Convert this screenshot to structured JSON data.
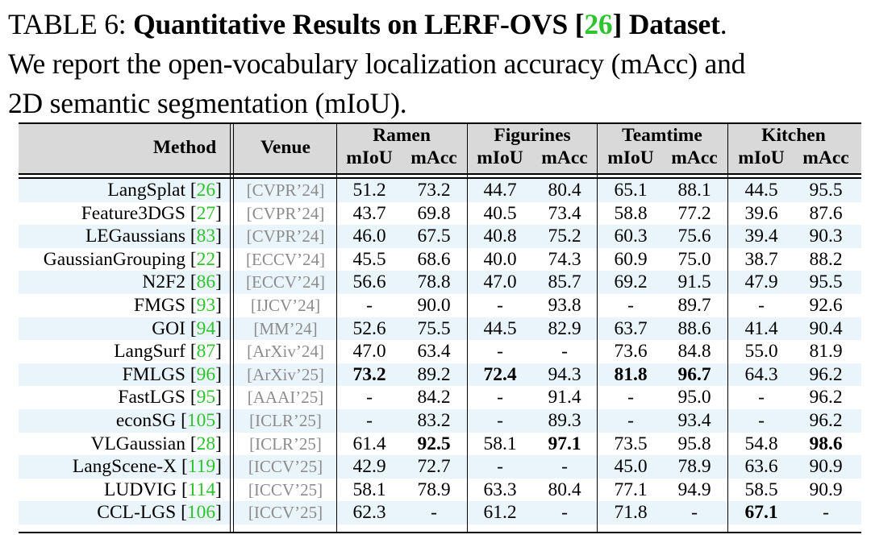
{
  "caption": {
    "label": "TABLE 6: ",
    "title_pre": "Quantitative Results on LERF-OVS [",
    "title_cite": "26",
    "title_post": "] Dataset",
    "period": ".",
    "line2": "We report the open-vocabulary localization accuracy (mAcc) and",
    "line3": "2D semantic segmentation (mIoU)."
  },
  "table": {
    "headers": {
      "method": "Method",
      "venue": "Venue",
      "groups": [
        "Ramen",
        "Figurines",
        "Teamtime",
        "Kitchen"
      ],
      "sub": [
        "mIoU",
        "mAcc"
      ]
    },
    "rows": [
      {
        "name": "LangSplat",
        "cite": "26",
        "venue": "[CVPR’24]",
        "v": [
          "51.2",
          "73.2",
          "44.7",
          "80.4",
          "65.1",
          "88.1",
          "44.5",
          "95.5"
        ],
        "bold": []
      },
      {
        "name": "Feature3DGS",
        "cite": "27",
        "venue": "[CVPR’24]",
        "v": [
          "43.7",
          "69.8",
          "40.5",
          "73.4",
          "58.8",
          "77.2",
          "39.6",
          "87.6"
        ],
        "bold": []
      },
      {
        "name": "LEGaussians",
        "cite": "83",
        "venue": "[CVPR’24]",
        "v": [
          "46.0",
          "67.5",
          "40.8",
          "75.2",
          "60.3",
          "75.6",
          "39.4",
          "90.3"
        ],
        "bold": []
      },
      {
        "name": "GaussianGrouping",
        "cite": "22",
        "venue": "[ECCV’24]",
        "v": [
          "45.5",
          "68.6",
          "40.0",
          "74.3",
          "60.9",
          "75.0",
          "38.7",
          "88.2"
        ],
        "bold": []
      },
      {
        "name": "N2F2",
        "cite": "86",
        "venue": "[ECCV’24]",
        "v": [
          "56.6",
          "78.8",
          "47.0",
          "85.7",
          "69.2",
          "91.5",
          "47.9",
          "95.5"
        ],
        "bold": []
      },
      {
        "name": "FMGS",
        "cite": "93",
        "venue": "[IJCV’24]",
        "v": [
          "-",
          "90.0",
          "-",
          "93.8",
          "-",
          "89.7",
          "-",
          "92.6"
        ],
        "bold": []
      },
      {
        "name": "GOI",
        "cite": "94",
        "venue": "[MM’24]",
        "v": [
          "52.6",
          "75.5",
          "44.5",
          "82.9",
          "63.7",
          "88.6",
          "41.4",
          "90.4"
        ],
        "bold": []
      },
      {
        "name": "LangSurf",
        "cite": "87",
        "venue": "[ArXiv’24]",
        "v": [
          "47.0",
          "63.4",
          "-",
          "-",
          "73.6",
          "84.8",
          "55.0",
          "81.9"
        ],
        "bold": []
      },
      {
        "name": "FMLGS",
        "cite": "96",
        "venue": "[ArXiv’25]",
        "v": [
          "73.2",
          "89.2",
          "72.4",
          "94.3",
          "81.8",
          "96.7",
          "64.3",
          "96.2"
        ],
        "bold": [
          0,
          2,
          4,
          5
        ]
      },
      {
        "name": "FastLGS",
        "cite": "95",
        "venue": "[AAAI’25]",
        "v": [
          "-",
          "84.2",
          "-",
          "91.4",
          "-",
          "95.0",
          "-",
          "96.2"
        ],
        "bold": []
      },
      {
        "name": "econSG",
        "cite": "105",
        "venue": "[ICLR’25]",
        "v": [
          "-",
          "83.2",
          "-",
          "89.3",
          "-",
          "93.4",
          "-",
          "96.2"
        ],
        "bold": []
      },
      {
        "name": "VLGaussian",
        "cite": "28",
        "venue": "[ICLR’25]",
        "v": [
          "61.4",
          "92.5",
          "58.1",
          "97.1",
          "73.5",
          "95.8",
          "54.8",
          "98.6"
        ],
        "bold": [
          1,
          3,
          7
        ]
      },
      {
        "name": "LangScene-X",
        "cite": "119",
        "venue": "[ICCV’25]",
        "v": [
          "42.9",
          "72.7",
          "-",
          "-",
          "45.0",
          "78.9",
          "63.6",
          "90.9"
        ],
        "bold": []
      },
      {
        "name": "LUDVIG",
        "cite": "114",
        "venue": "[ICCV’25]",
        "v": [
          "58.1",
          "78.9",
          "63.3",
          "80.4",
          "77.1",
          "94.9",
          "58.5",
          "90.9"
        ],
        "bold": []
      },
      {
        "name": "CCL-LGS",
        "cite": "106",
        "venue": "[ICCV’25]",
        "v": [
          "62.3",
          "-",
          "61.2",
          "-",
          "71.8",
          "-",
          "67.1",
          "-"
        ],
        "bold": [
          6
        ]
      }
    ]
  }
}
